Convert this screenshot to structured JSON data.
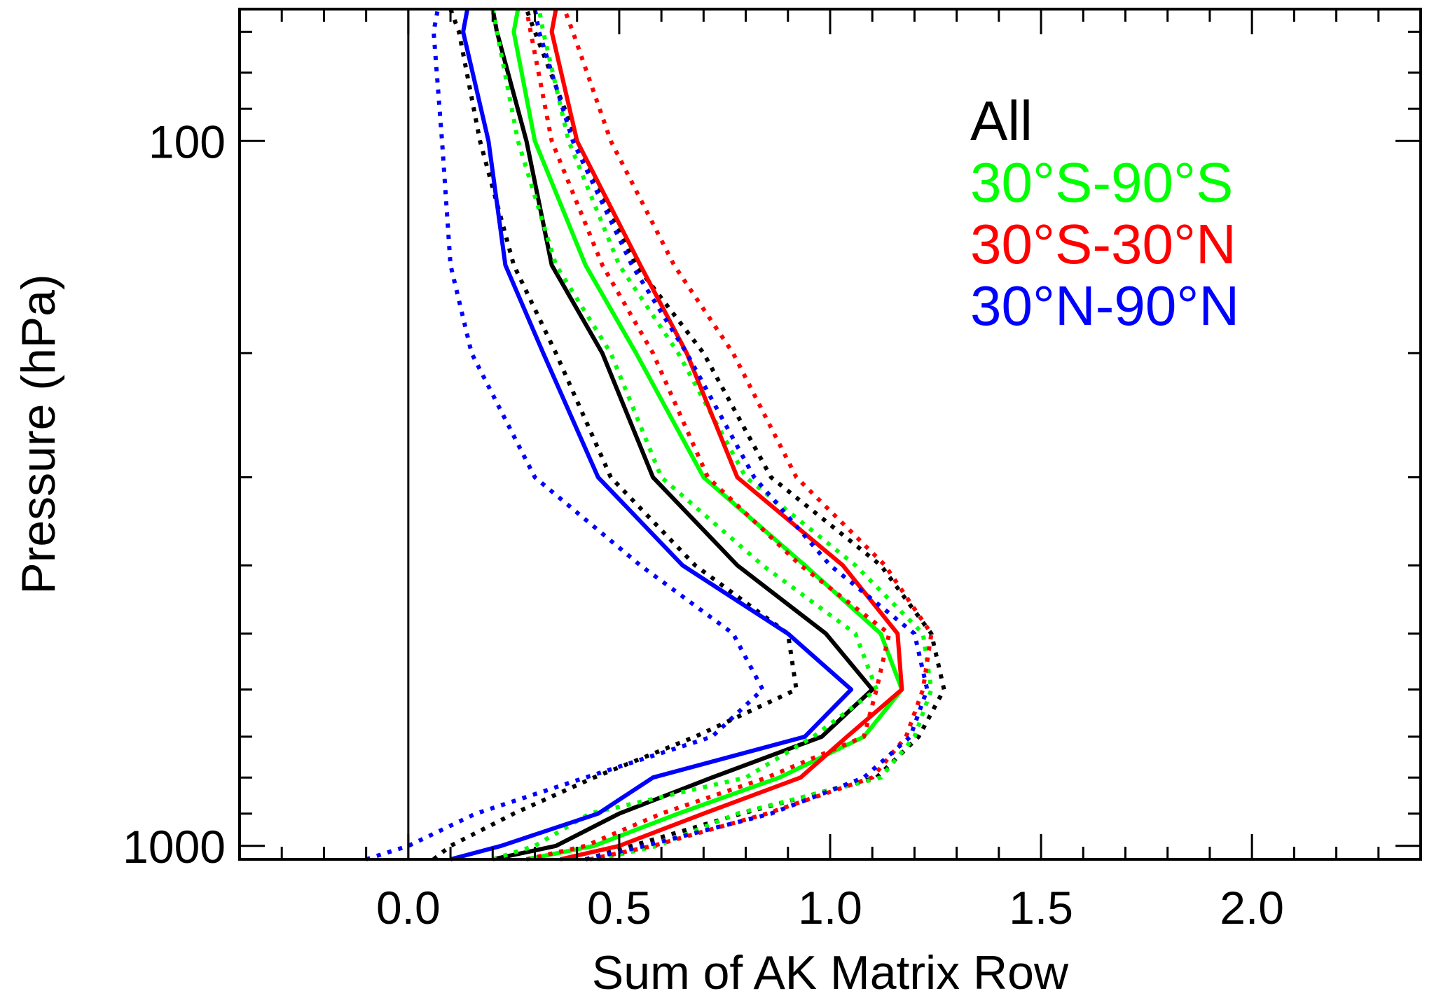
{
  "chart_data": {
    "type": "line",
    "title": "",
    "xlabel": "Sum of AK Matrix Row",
    "ylabel": "Pressure (hPa)",
    "xlim": [
      -0.4,
      2.4
    ],
    "ylim": [
      1045,
      65
    ],
    "yscale": "log",
    "xticks": [
      {
        "value": 0.0,
        "label": "0.0"
      },
      {
        "value": 0.5,
        "label": "0.5"
      },
      {
        "value": 1.0,
        "label": "1.0"
      },
      {
        "value": 1.5,
        "label": "1.5"
      },
      {
        "value": 2.0,
        "label": "2.0"
      }
    ],
    "yticks": [
      {
        "value": 100,
        "label": "100"
      },
      {
        "value": 1000,
        "label": "1000"
      }
    ],
    "yminor": [
      70,
      80,
      90,
      200,
      300,
      400,
      500,
      600,
      700,
      800,
      900
    ],
    "xminor_step": 0.1,
    "reference_line": {
      "x": 0.0,
      "color": "#000000"
    },
    "grid": false,
    "legend_position": "top-right",
    "legend": [
      {
        "label": "All",
        "color": "#000000"
      },
      {
        "label": "30°S-90°S",
        "color": "#00ff00"
      },
      {
        "label": "30°S-30°N",
        "color": "#ff0000"
      },
      {
        "label": "30°N-90°N",
        "color": "#0000ff"
      }
    ],
    "pressure_levels": [
      1045,
      1000,
      900,
      800,
      700,
      600,
      500,
      400,
      300,
      200,
      150,
      100,
      70,
      65
    ],
    "series": [
      {
        "name": "All",
        "color": "#000000",
        "style": "solid",
        "x": [
          0.2,
          0.35,
          0.5,
          0.72,
          0.98,
          1.1,
          0.99,
          0.78,
          0.58,
          0.46,
          0.34,
          0.28,
          0.21,
          0.2
        ]
      },
      {
        "name": "All",
        "color": "#000000",
        "style": "dotted",
        "x": [
          0.06,
          0.1,
          0.25,
          0.44,
          0.68,
          0.92,
          0.9,
          0.68,
          0.48,
          0.35,
          0.25,
          0.17,
          0.12,
          0.1
        ]
      },
      {
        "name": "All",
        "color": "#000000",
        "style": "dotted",
        "x": [
          0.42,
          0.53,
          0.79,
          1.11,
          1.21,
          1.27,
          1.24,
          1.12,
          0.86,
          0.7,
          0.54,
          0.4,
          0.3,
          0.28
        ]
      },
      {
        "name": "30°S-90°S",
        "color": "#00ff00",
        "style": "solid",
        "x": [
          0.28,
          0.44,
          0.64,
          0.88,
          1.08,
          1.17,
          1.12,
          0.94,
          0.7,
          0.54,
          0.42,
          0.3,
          0.25,
          0.26
        ]
      },
      {
        "name": "30°S-90°S",
        "color": "#00ff00",
        "style": "dotted",
        "x": [
          0.2,
          0.3,
          0.43,
          0.8,
          0.96,
          1.11,
          1.06,
          0.84,
          0.6,
          0.48,
          0.35,
          0.26,
          0.21,
          0.2
        ]
      },
      {
        "name": "30°S-90°S",
        "color": "#00ff00",
        "style": "dotted",
        "x": [
          0.45,
          0.59,
          0.78,
          1.12,
          1.2,
          1.24,
          1.22,
          1.06,
          0.8,
          0.64,
          0.5,
          0.38,
          0.32,
          0.31
        ]
      },
      {
        "name": "30°S-30°N",
        "color": "#ff0000",
        "style": "solid",
        "x": [
          0.36,
          0.5,
          0.7,
          0.93,
          1.04,
          1.17,
          1.16,
          1.03,
          0.78,
          0.66,
          0.55,
          0.4,
          0.34,
          0.35
        ]
      },
      {
        "name": "30°S-30°N",
        "color": "#ff0000",
        "style": "dotted",
        "x": [
          0.28,
          0.42,
          0.6,
          0.85,
          1.08,
          1.11,
          1.14,
          0.93,
          0.71,
          0.58,
          0.46,
          0.34,
          0.29,
          0.28
        ]
      },
      {
        "name": "30°S-30°N",
        "color": "#ff0000",
        "style": "dotted",
        "x": [
          0.43,
          0.58,
          0.85,
          1.1,
          1.18,
          1.22,
          1.24,
          1.13,
          0.92,
          0.77,
          0.63,
          0.48,
          0.39,
          0.37
        ]
      },
      {
        "name": "30°N-90°N",
        "color": "#0000ff",
        "style": "solid",
        "x": [
          0.1,
          0.22,
          0.45,
          0.58,
          0.94,
          1.05,
          0.9,
          0.65,
          0.45,
          0.32,
          0.23,
          0.19,
          0.13,
          0.14
        ]
      },
      {
        "name": "30°N-90°N",
        "color": "#0000ff",
        "style": "dotted",
        "x": [
          -0.1,
          0.0,
          0.16,
          0.42,
          0.72,
          0.84,
          0.77,
          0.55,
          0.3,
          0.15,
          0.1,
          0.08,
          0.06,
          0.07
        ]
      },
      {
        "name": "30°N-90°N",
        "color": "#0000ff",
        "style": "dotted",
        "x": [
          0.42,
          0.56,
          0.86,
          1.08,
          1.19,
          1.23,
          1.2,
          1.0,
          0.82,
          0.66,
          0.53,
          0.39,
          0.31,
          0.3
        ]
      }
    ]
  }
}
